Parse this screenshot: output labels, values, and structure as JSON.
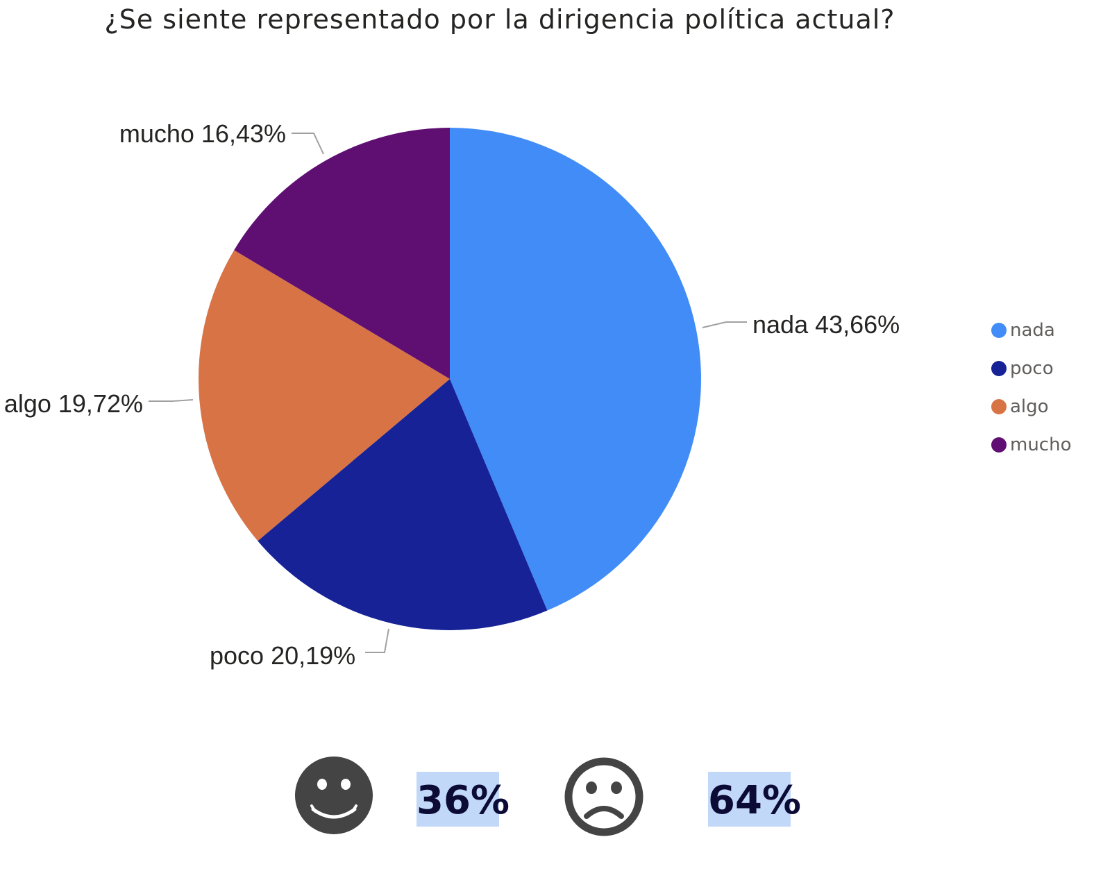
{
  "chart_data": {
    "type": "pie",
    "title": "¿Se siente representado por la dirigencia política actual?",
    "slices": [
      {
        "name": "nada",
        "value": 43.66,
        "label": "nada 43,66%",
        "color": "#418cf7"
      },
      {
        "name": "poco",
        "value": 20.19,
        "label": "poco 20,19%",
        "color": "#162296"
      },
      {
        "name": "algo",
        "value": 19.72,
        "label": "algo 19,72%",
        "color": "#d87346"
      },
      {
        "name": "mucho",
        "value": 16.43,
        "label": "mucho 16,43%",
        "color": "#5f0f72"
      }
    ],
    "legend": [
      "nada",
      "poco",
      "algo",
      "mucho"
    ],
    "legend_position": "right"
  },
  "summary": {
    "positive": {
      "icon": "smiley-face-icon",
      "value": "36%"
    },
    "negative": {
      "icon": "sad-face-icon",
      "value": "64%"
    }
  }
}
